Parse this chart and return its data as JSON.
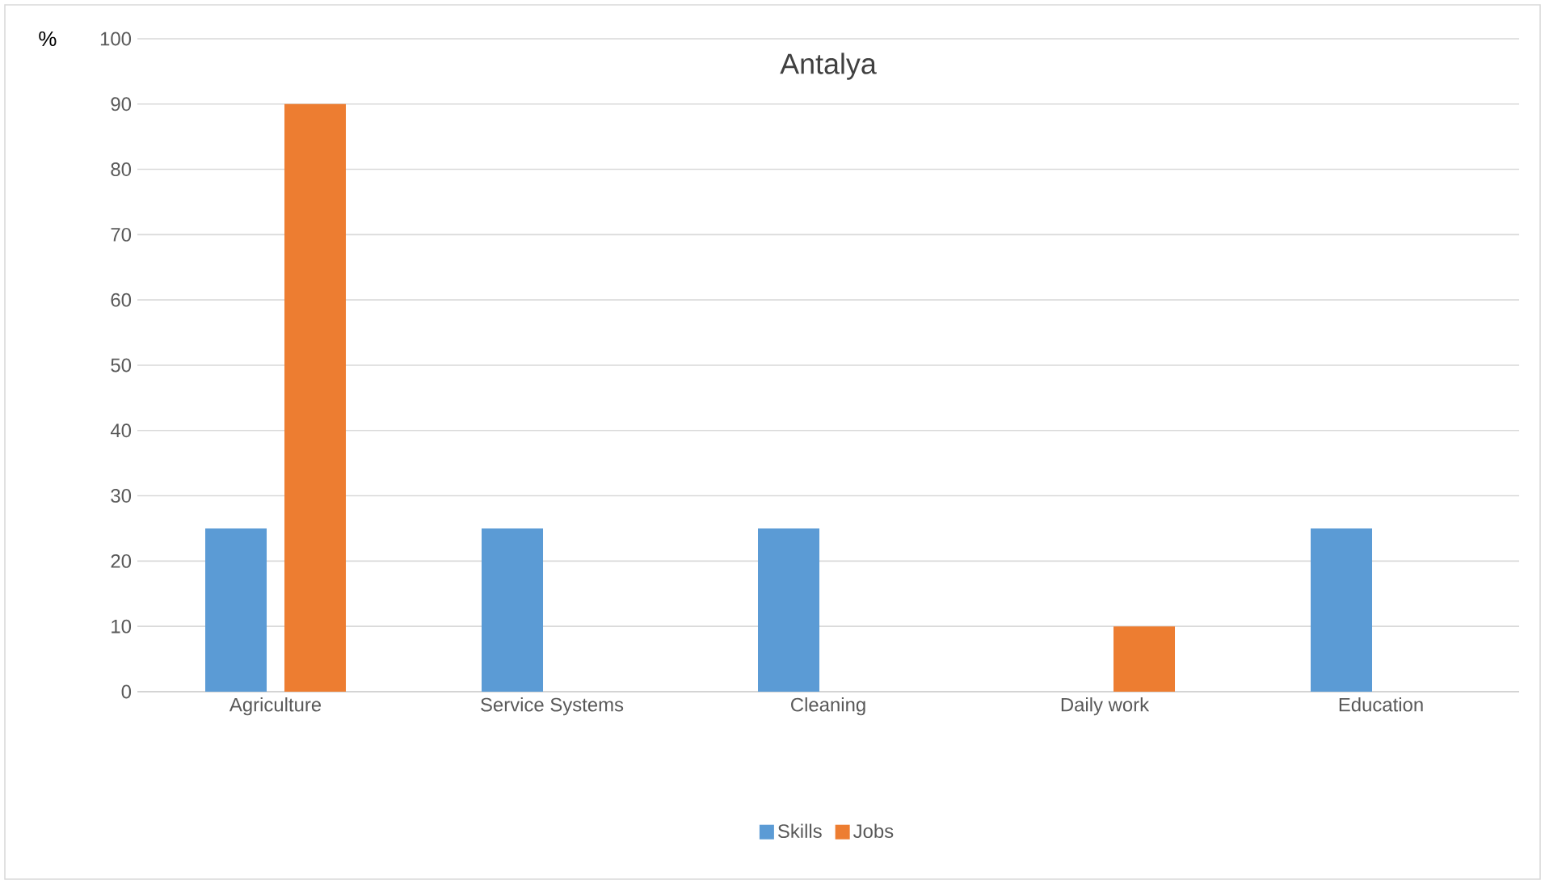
{
  "chart_data": {
    "type": "bar",
    "title": "Antalya",
    "ylabel": "%",
    "categories": [
      "Agriculture",
      "Service Systems",
      "Cleaning",
      "Daily work",
      "Education"
    ],
    "series": [
      {
        "name": "Skills",
        "color": "#5b9bd5",
        "values": [
          25,
          25,
          25,
          0,
          25
        ]
      },
      {
        "name": "Jobs",
        "color": "#ed7d31",
        "values": [
          90,
          0,
          0,
          10,
          0
        ]
      }
    ],
    "ylim": [
      0,
      100
    ],
    "yticks": [
      0,
      10,
      20,
      30,
      40,
      50,
      60,
      70,
      80,
      90,
      100
    ],
    "grid": "y",
    "legend": "bottom"
  }
}
